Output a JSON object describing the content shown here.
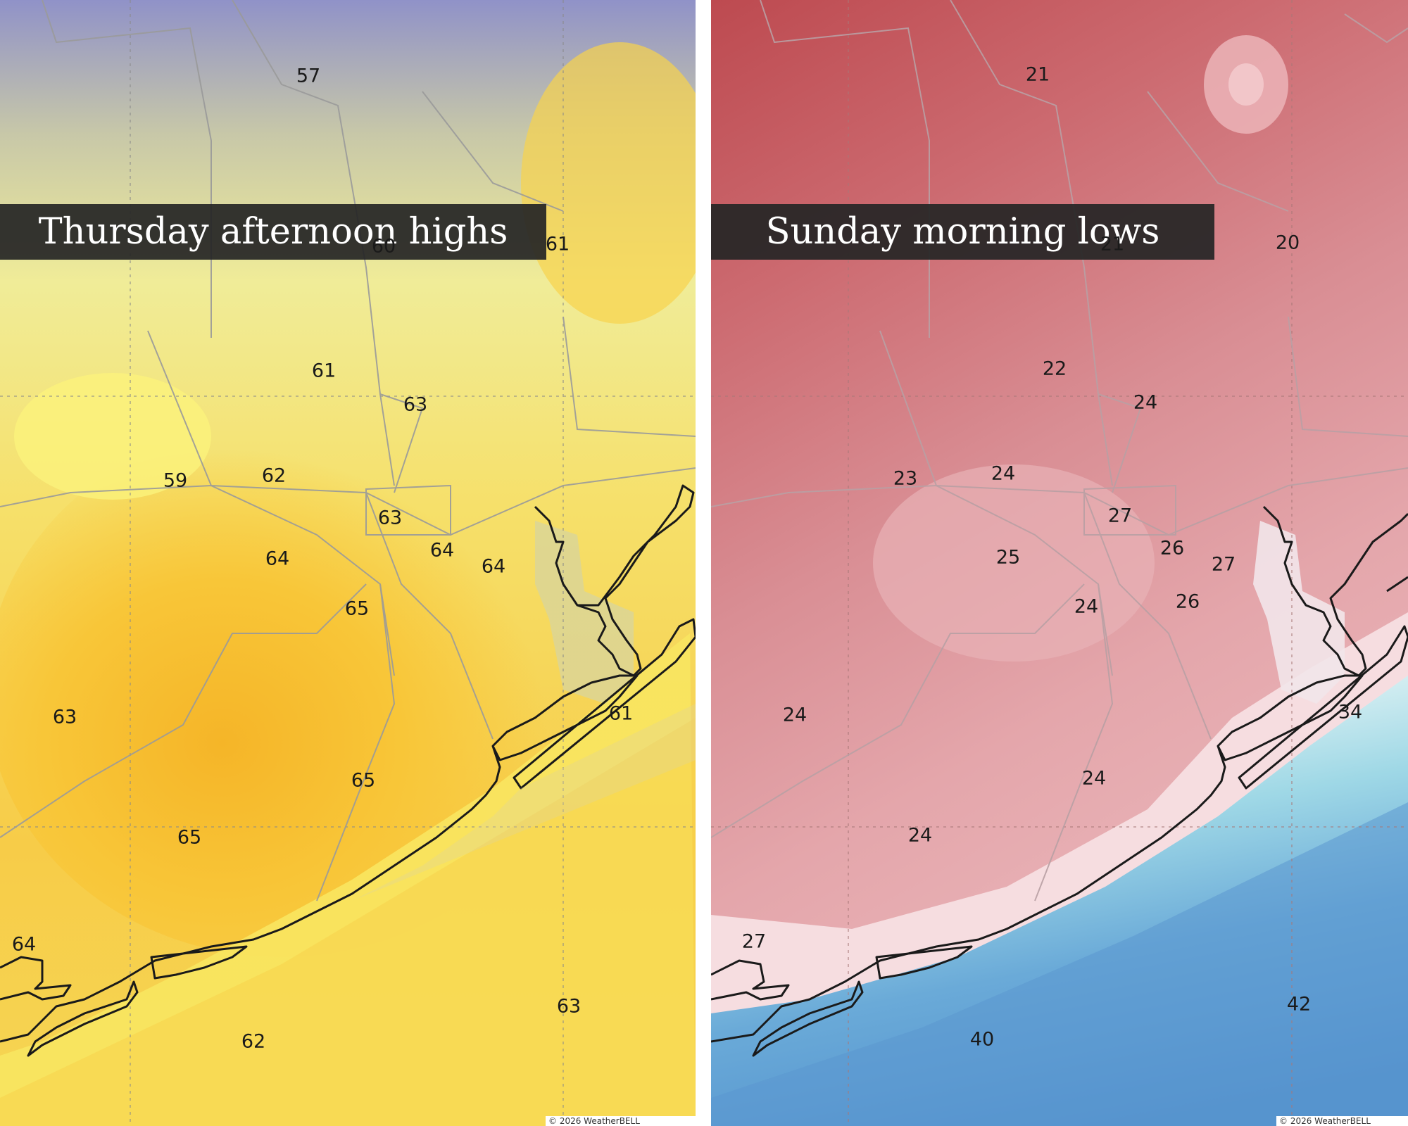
{
  "panels": {
    "left": {
      "title": "Thursday afternoon highs",
      "copyright": "© 2026 WeatherBELL",
      "temperatures": [
        "57",
        "60",
        "61",
        "61",
        "63",
        "59",
        "62",
        "63",
        "64",
        "64",
        "64",
        "65",
        "63",
        "61",
        "65",
        "65",
        "64",
        "62",
        "63"
      ]
    },
    "right": {
      "title": "Sunday morning lows",
      "copyright": "© 2026 WeatherBELL",
      "temperatures": [
        "21",
        "21",
        "20",
        "22",
        "24",
        "23",
        "24",
        "27",
        "25",
        "26",
        "27",
        "26",
        "24",
        "24",
        "34",
        "24",
        "24",
        "27",
        "40",
        "42"
      ]
    }
  },
  "colors": {
    "left_cool": "#8d8fc9",
    "left_mid": "#f4ee88",
    "left_warm": "#f7be2e",
    "right_cold": "#bf4c52",
    "right_mid": "#e6a7ac",
    "right_coast": "#f7e4e6",
    "right_water": "#5a9bd2",
    "outline": "#1a1a1a",
    "county_lines": "#9a9a9a"
  }
}
